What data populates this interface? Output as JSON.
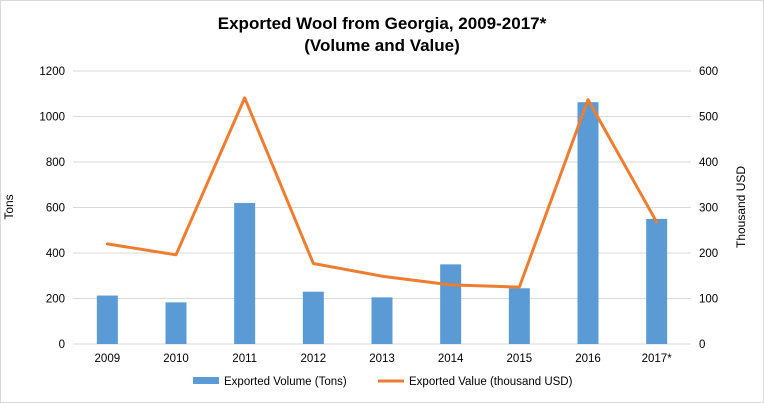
{
  "chart_data": {
    "type": "bar",
    "title_lines": [
      "Exported Wool from Georgia, 2009-2017*",
      "(Volume and Value)"
    ],
    "categories": [
      "2009",
      "2010",
      "2011",
      "2012",
      "2013",
      "2014",
      "2015",
      "2016",
      "2017*"
    ],
    "series": [
      {
        "name": "Exported Volume (Tons)",
        "type": "bar",
        "axis": "left",
        "color": "#5B9BD5",
        "values": [
          213,
          183,
          620,
          230,
          205,
          350,
          245,
          1063,
          550
        ]
      },
      {
        "name": "Exported Value (thousand USD)",
        "type": "line",
        "axis": "right",
        "color": "#ED7D31",
        "values": [
          220,
          196,
          541,
          177,
          149,
          130,
          125,
          537,
          268
        ]
      }
    ],
    "y_left": {
      "label": "Tons",
      "range": [
        0,
        1200
      ],
      "ticks": [
        "0",
        "200",
        "400",
        "600",
        "800",
        "1000",
        "1200"
      ]
    },
    "y_right": {
      "label": "Thousand  USD",
      "range": [
        0,
        600
      ],
      "ticks": [
        "0",
        "100",
        "200",
        "300",
        "400",
        "500",
        "600"
      ]
    },
    "grid": true,
    "gridline_color": "#d9d9d9",
    "legend_position": "bottom"
  }
}
